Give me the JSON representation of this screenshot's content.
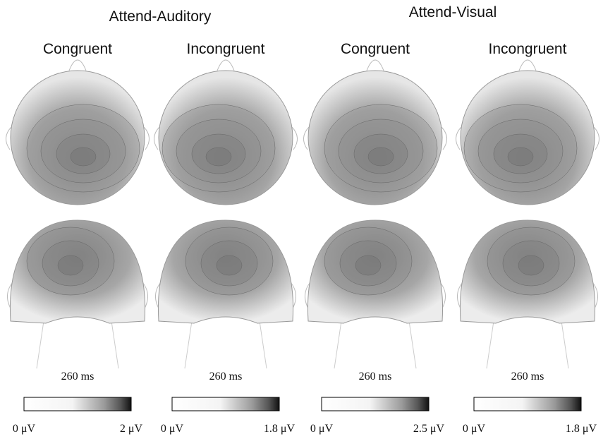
{
  "groups": [
    {
      "title": "Attend-Auditory",
      "panels": [
        {
          "condition": "Congruent",
          "time": "260 ms",
          "scale_min": "0 μV",
          "scale_max": "2 μV"
        },
        {
          "condition": "Incongruent",
          "time": "260 ms",
          "scale_min": "0 μV",
          "scale_max": "1.8 μV"
        }
      ]
    },
    {
      "title": "Attend-Visual",
      "panels": [
        {
          "condition": "Congruent",
          "time": "260 ms",
          "scale_min": "0 μV",
          "scale_max": "2.5 μV"
        },
        {
          "condition": "Incongruent",
          "time": "260 ms",
          "scale_min": "0 μV",
          "scale_max": "1.8 μV"
        }
      ]
    }
  ]
}
